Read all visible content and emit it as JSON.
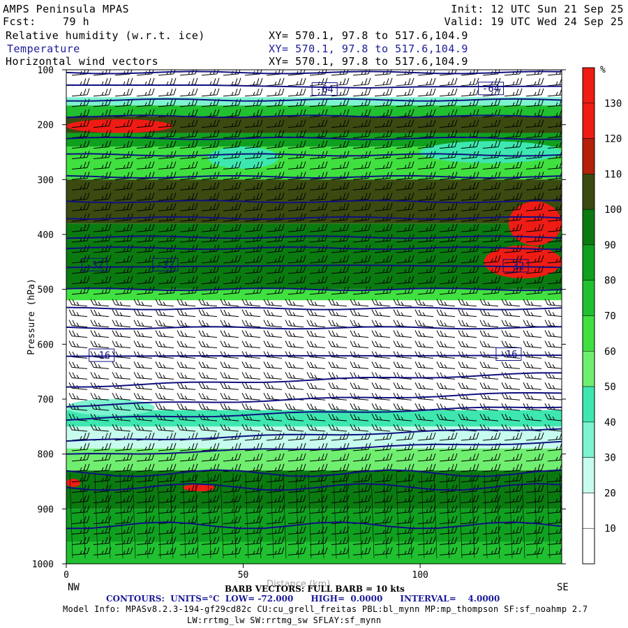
{
  "header": {
    "app": "AMPS Peninsula MPAS",
    "fcst_label": "Fcst:",
    "fcst_value": "79 h",
    "init": "Init: 12 UTC Sun 21 Sep 25",
    "valid": "Valid: 19 UTC Wed 24 Sep 25",
    "fields": [
      {
        "name": "Relative humidity (w.r.t. ice)",
        "xy": "XY= 570.1, 97.8 to 517.6,104.9"
      },
      {
        "name": "Temperature",
        "xy": "XY= 570.1, 97.8 to 517.6,104.9"
      },
      {
        "name": "Horizontal wind vectors",
        "xy": "XY= 570.1, 97.8 to 517.6,104.9"
      }
    ]
  },
  "footer": {
    "left_end": "NW",
    "right_end": "SE",
    "barb_note": "BARB VECTORS: FULL BARB = 10 kts",
    "xlabel_partial": "Distance (km)",
    "contours": "CONTOURS:  UNITS=°C  LOW= -72.000      HIGH=  0.0000      INTERVAL=    4.0000",
    "model_info_1": "Model Info: MPASv8.2.3-194-gf29cd82c CU:cu_grell_freitas PBL:bl_mynn MP:mp_thompson SF:sf_noahmp 2.7",
    "model_info_2": "LW:rrtmg_lw SW:rrtmg_sw SFLAY:sf_mynn"
  },
  "colors": {
    "red": "#ee1c14",
    "dark_red": "#b52008",
    "olive": "#3a4a10",
    "dark_green": "#0a7a10",
    "green_90": "#10a020",
    "green_80": "#20c030",
    "green_70": "#40e040",
    "green_60": "#70ee70",
    "aqua_50": "#3ee7b0",
    "aqua_40": "#7df3d0",
    "aqua_30": "#c6fbee",
    "white": "#ffffff",
    "contour": "#101080",
    "barb": "#000000"
  },
  "chart_data": {
    "type": "heatmap",
    "title": "Relative humidity (w.r.t. ice)",
    "ylabel": "Pressure (hPa)",
    "xlabel": "Distance (km)",
    "xlim": [
      0,
      140
    ],
    "ylim": [
      1000,
      100
    ],
    "x_ticks": [
      0,
      50,
      100
    ],
    "y_ticks": [
      100,
      200,
      300,
      400,
      500,
      600,
      700,
      800,
      900,
      1000
    ],
    "colorbar": {
      "unit": "%",
      "labels": [
        10,
        20,
        30,
        40,
        50,
        60,
        70,
        80,
        90,
        100,
        110,
        120,
        130
      ]
    },
    "rh_layers": [
      {
        "p_top": 100,
        "p_bot": 150,
        "rh": 10
      },
      {
        "p_top": 150,
        "p_bot": 165,
        "rh": 30
      },
      {
        "p_top": 165,
        "p_bot": 185,
        "rh": 70
      },
      {
        "p_top": 185,
        "p_bot": 215,
        "rh": 105
      },
      {
        "p_top": 215,
        "p_bot": 240,
        "rh": 85
      },
      {
        "p_top": 240,
        "p_bot": 300,
        "rh": 60
      },
      {
        "p_top": 300,
        "p_bot": 380,
        "rh": 100
      },
      {
        "p_top": 380,
        "p_bot": 410,
        "rh": 90
      },
      {
        "p_top": 410,
        "p_bot": 500,
        "rh": 95
      },
      {
        "p_top": 500,
        "p_bot": 520,
        "rh": 65
      },
      {
        "p_top": 520,
        "p_bot": 590,
        "rh": 15
      },
      {
        "p_top": 590,
        "p_bot": 720,
        "rh": 10
      },
      {
        "p_top": 720,
        "p_bot": 750,
        "rh": 45
      },
      {
        "p_top": 750,
        "p_bot": 790,
        "rh": 20
      },
      {
        "p_top": 790,
        "p_bot": 830,
        "rh": 55
      },
      {
        "p_top": 830,
        "p_bot": 900,
        "rh": 95
      },
      {
        "p_top": 900,
        "p_bot": 960,
        "rh": 85
      },
      {
        "p_top": 960,
        "p_bot": 1000,
        "rh": 75
      }
    ],
    "rh_features": [
      {
        "x0": 0,
        "x1": 30,
        "p_top": 190,
        "p_bot": 215,
        "rh": 120
      },
      {
        "x0": 40,
        "x1": 60,
        "p_top": 240,
        "p_bot": 280,
        "rh": 45
      },
      {
        "x0": 100,
        "x1": 140,
        "p_top": 230,
        "p_bot": 270,
        "rh": 45
      },
      {
        "x0": 125,
        "x1": 140,
        "p_top": 340,
        "p_bot": 420,
        "rh": 125
      },
      {
        "x0": 118,
        "x1": 140,
        "p_top": 420,
        "p_bot": 480,
        "rh": 130
      },
      {
        "x0": 0,
        "x1": 60,
        "p_top": 560,
        "p_bot": 640,
        "rh": 10
      },
      {
        "x0": 0,
        "x1": 25,
        "p_top": 700,
        "p_bot": 730,
        "rh": 35
      },
      {
        "x0": 0,
        "x1": 4,
        "p_top": 845,
        "p_bot": 860,
        "rh": 120
      },
      {
        "x0": 33,
        "x1": 42,
        "p_top": 855,
        "p_bot": 868,
        "rh": 120
      }
    ],
    "temperature_contours": [
      {
        "label": "-64",
        "points": [
          [
            0,
            128
          ],
          [
            40,
            128
          ],
          [
            85,
            133
          ],
          [
            100,
            131
          ],
          [
            140,
            130
          ]
        ]
      },
      {
        "label": "-32",
        "points": [
          [
            0,
            460
          ],
          [
            40,
            458
          ],
          [
            80,
            456
          ],
          [
            120,
            458
          ],
          [
            140,
            460
          ]
        ]
      },
      {
        "label": "-16",
        "points": [
          [
            0,
            622
          ],
          [
            50,
            621
          ],
          [
            100,
            621
          ],
          [
            140,
            620
          ]
        ]
      }
    ],
    "contour_labels": [
      {
        "text": "-64",
        "x": 73,
        "p": 135
      },
      {
        "text": "-64",
        "x": 120,
        "p": 134
      },
      {
        "text": "-32",
        "x": 8,
        "p": 455
      },
      {
        "text": "-32",
        "x": 28,
        "p": 455
      },
      {
        "text": "-32",
        "x": 127,
        "p": 457
      },
      {
        "text": "-16",
        "x": 10,
        "p": 620
      },
      {
        "text": "-16",
        "x": 125,
        "p": 618
      }
    ],
    "unlabeled_isotherms_hpa": [
      105,
      155,
      185,
      225,
      255,
      295,
      340,
      370,
      405,
      425,
      500,
      535,
      570,
      665,
      700,
      725,
      765,
      790,
      835,
      860,
      930
    ]
  }
}
